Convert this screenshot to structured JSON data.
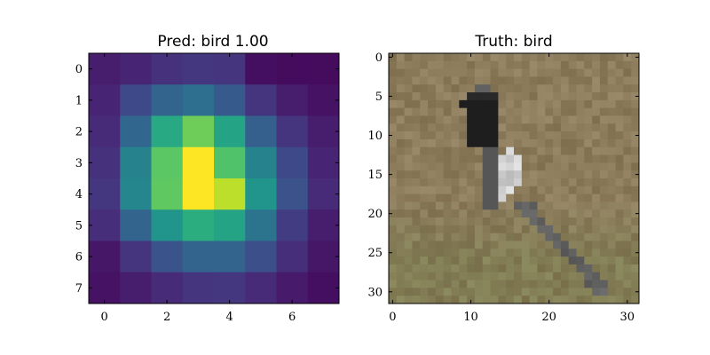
{
  "chart_data": [
    {
      "type": "heatmap",
      "title": "Pred: bird 1.00",
      "colormap": "viridis",
      "xlim": [
        -0.5,
        7.5
      ],
      "ylim": [
        7.5,
        -0.5
      ],
      "x_ticks": [
        0,
        2,
        4,
        6
      ],
      "y_ticks": [
        0,
        1,
        2,
        3,
        4,
        5,
        6,
        7
      ],
      "values": [
        [
          0.08,
          0.1,
          0.14,
          0.16,
          0.15,
          0.04,
          0.03,
          0.03
        ],
        [
          0.1,
          0.22,
          0.32,
          0.36,
          0.28,
          0.15,
          0.08,
          0.05
        ],
        [
          0.12,
          0.33,
          0.6,
          0.78,
          0.58,
          0.3,
          0.15,
          0.08
        ],
        [
          0.14,
          0.45,
          0.74,
          1.0,
          0.72,
          0.45,
          0.22,
          0.1
        ],
        [
          0.16,
          0.46,
          0.75,
          1.0,
          0.9,
          0.52,
          0.25,
          0.12
        ],
        [
          0.13,
          0.32,
          0.52,
          0.62,
          0.58,
          0.38,
          0.18,
          0.08
        ],
        [
          0.06,
          0.15,
          0.26,
          0.32,
          0.32,
          0.24,
          0.13,
          0.06
        ],
        [
          0.05,
          0.08,
          0.12,
          0.15,
          0.16,
          0.12,
          0.07,
          0.04
        ]
      ]
    },
    {
      "type": "image",
      "title": "Truth: bird",
      "xlim": [
        -0.5,
        31.5
      ],
      "ylim": [
        31.5,
        -0.5
      ],
      "x_ticks": [
        0,
        10,
        20,
        30
      ],
      "y_ticks": [
        0,
        5,
        10,
        15,
        20,
        25,
        30
      ],
      "background_color": "#8c7c5c",
      "grass_color": "#7f7d52",
      "bird_dark": "#1e1e1e",
      "bird_light": "#e4e4e4",
      "bird_mid": "#8e8e8e"
    }
  ]
}
